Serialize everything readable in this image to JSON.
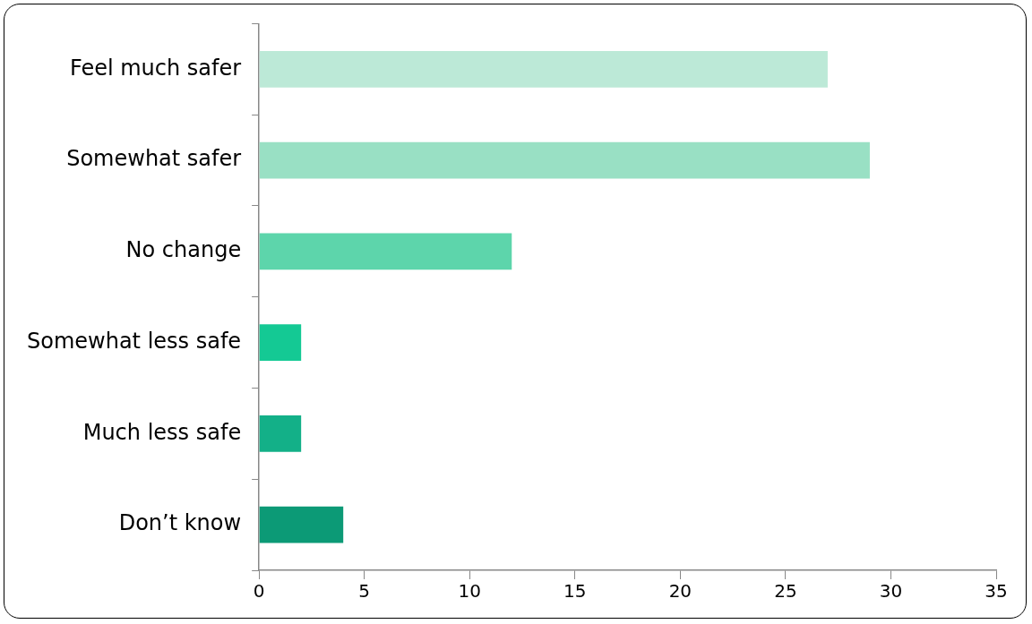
{
  "chart_data": {
    "type": "bar",
    "orientation": "horizontal",
    "categories": [
      "Feel much safer",
      "Somewhat safer",
      "No change",
      "Somewhat less safe",
      "Much less safe",
      "Don’t know"
    ],
    "values": [
      27,
      29,
      12,
      2,
      2,
      4
    ],
    "colors": [
      "#bce9d7",
      "#99e0c4",
      "#5dd5ab",
      "#14c994",
      "#13b088",
      "#0c9a76"
    ],
    "xlim": [
      0,
      35
    ],
    "xticks": [
      0,
      5,
      10,
      15,
      20,
      25,
      30,
      35
    ]
  }
}
